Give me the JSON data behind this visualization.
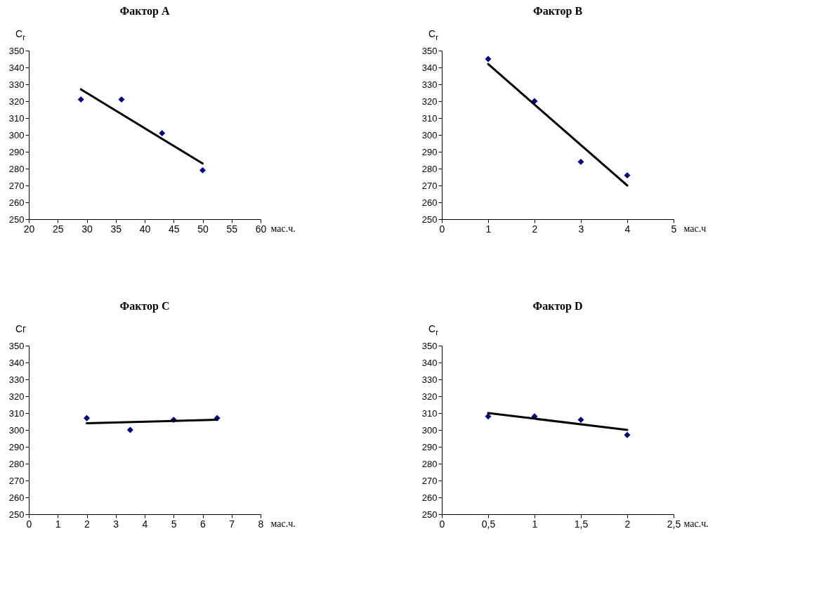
{
  "chart_data": [
    {
      "type": "scatter",
      "title": "Фактор A",
      "xlabel": "мас.ч.",
      "ylabel": "C$_{г}$",
      "x": [
        29,
        36,
        43,
        50
      ],
      "xlim": [
        20,
        60
      ],
      "xticks": [
        20,
        25,
        30,
        35,
        40,
        45,
        50,
        55,
        60
      ],
      "ylim": [
        250,
        350
      ],
      "yticks": [
        250,
        260,
        270,
        280,
        290,
        300,
        310,
        320,
        330,
        340,
        350
      ],
      "series": [
        {
          "type": "scatter",
          "marker": "diamond",
          "color": "#000080",
          "values": [
            321,
            321,
            301,
            279
          ]
        },
        {
          "type": "line",
          "color": "#000000",
          "x": [
            29,
            50
          ],
          "values": [
            327,
            283
          ]
        }
      ]
    },
    {
      "type": "scatter",
      "title": "Фактор B",
      "xlabel": "мас.ч",
      "ylabel": "C$_{г}$",
      "x": [
        1,
        2,
        3,
        4
      ],
      "xlim": [
        0,
        5
      ],
      "xticks": [
        0,
        1,
        2,
        3,
        4,
        5
      ],
      "ylim": [
        250,
        350
      ],
      "yticks": [
        250,
        260,
        270,
        280,
        290,
        300,
        310,
        320,
        330,
        340,
        350
      ],
      "series": [
        {
          "type": "scatter",
          "marker": "diamond",
          "color": "#000080",
          "values": [
            345,
            320,
            284,
            276
          ]
        },
        {
          "type": "line",
          "color": "#000000",
          "x": [
            1,
            4
          ],
          "values": [
            342,
            270
          ]
        }
      ]
    },
    {
      "type": "scatter",
      "title": "Фактор C",
      "xlabel": "мас.ч.",
      "ylabel": "Cг",
      "x": [
        2,
        3.5,
        5,
        6.5
      ],
      "xlim": [
        0,
        8
      ],
      "xticks": [
        0,
        1,
        2,
        3,
        4,
        5,
        6,
        7,
        8
      ],
      "ylim": [
        250,
        350
      ],
      "yticks": [
        250,
        260,
        270,
        280,
        290,
        300,
        310,
        320,
        330,
        340,
        350
      ],
      "series": [
        {
          "type": "scatter",
          "marker": "diamond",
          "color": "#000080",
          "values": [
            307,
            300,
            306,
            307
          ]
        },
        {
          "type": "line",
          "color": "#000000",
          "x": [
            2,
            6.5
          ],
          "values": [
            304,
            306
          ]
        }
      ]
    },
    {
      "type": "scatter",
      "title": "Фактор D",
      "xlabel": "мас.ч.",
      "ylabel": "C$_{г}$",
      "x": [
        0.5,
        1,
        1.5,
        2
      ],
      "xlim": [
        0,
        2.5
      ],
      "xticks": [
        0,
        {
          "value": 0.5,
          "label": "0,5"
        },
        1,
        {
          "value": 1.5,
          "label": "1,5"
        },
        2,
        {
          "value": 2.5,
          "label": "2,5"
        }
      ],
      "ylim": [
        250,
        350
      ],
      "yticks": [
        250,
        260,
        270,
        280,
        290,
        300,
        310,
        320,
        330,
        340,
        350
      ],
      "series": [
        {
          "type": "scatter",
          "marker": "diamond",
          "color": "#000080",
          "values": [
            308,
            308,
            306,
            297
          ]
        },
        {
          "type": "line",
          "color": "#000000",
          "x": [
            0.5,
            2
          ],
          "values": [
            310,
            300
          ]
        }
      ]
    }
  ]
}
